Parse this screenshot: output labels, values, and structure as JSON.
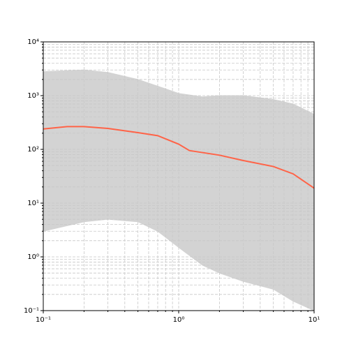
{
  "chart_data": {
    "type": "line",
    "xscale": "log",
    "yscale": "log",
    "grid": true,
    "xlim": [
      0.1,
      10
    ],
    "ylim": [
      0.1,
      10000
    ],
    "xticks": [
      {
        "value": 0.1,
        "label": "10⁻¹"
      },
      {
        "value": 1,
        "label": "10⁰"
      },
      {
        "value": 10,
        "label": "10¹"
      }
    ],
    "yticks": [
      {
        "value": 0.1,
        "label": "10⁻¹"
      },
      {
        "value": 1,
        "label": "10⁰"
      },
      {
        "value": 10,
        "label": "10¹"
      },
      {
        "value": 100,
        "label": "10²"
      },
      {
        "value": 1000,
        "label": "10³"
      },
      {
        "value": 10000,
        "label": "10⁴"
      }
    ],
    "xminorticks": [
      0.2,
      0.3,
      0.4,
      0.5,
      0.6,
      0.7,
      0.8,
      0.9,
      2,
      3,
      4,
      5,
      6,
      7,
      8,
      9
    ],
    "yminorticks": [
      0.2,
      0.3,
      0.4,
      0.5,
      0.6,
      0.7,
      0.8,
      0.9,
      2,
      3,
      4,
      5,
      6,
      7,
      8,
      9,
      20,
      30,
      40,
      50,
      60,
      70,
      80,
      90,
      200,
      300,
      400,
      500,
      600,
      700,
      800,
      900,
      2000,
      3000,
      4000,
      5000,
      6000,
      7000,
      8000,
      9000
    ],
    "band": {
      "color": "#d3d3d3",
      "x": [
        0.1,
        0.2,
        0.3,
        0.5,
        0.7,
        1,
        1.5,
        2,
        3,
        5,
        7,
        10
      ],
      "upper": [
        2800,
        3000,
        2700,
        2000,
        1500,
        1100,
        950,
        1000,
        1000,
        850,
        700,
        450
      ],
      "lower": [
        3,
        4.5,
        5,
        4.5,
        3,
        1.5,
        0.7,
        0.5,
        0.35,
        0.25,
        0.15,
        0.1
      ]
    },
    "series": [
      {
        "color": "#ff6347",
        "x": [
          0.1,
          0.15,
          0.2,
          0.3,
          0.5,
          0.7,
          1,
          1.2,
          2,
          3,
          5,
          7,
          10
        ],
        "values": [
          240,
          265,
          265,
          245,
          205,
          180,
          125,
          95,
          78,
          62,
          48,
          35,
          19
        ]
      }
    ]
  }
}
